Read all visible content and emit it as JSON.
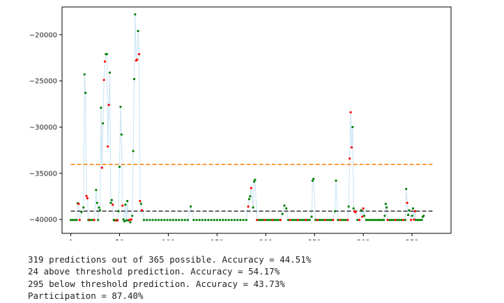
{
  "chart_data": {
    "type": "scatter",
    "title": "",
    "xlabel": "",
    "ylabel": "",
    "xlim": [
      -9,
      390
    ],
    "ylim": [
      -41500,
      -17000
    ],
    "xticks": [
      0,
      50,
      100,
      150,
      200,
      250,
      300,
      350
    ],
    "yticks": [
      -40000,
      -35000,
      -30000,
      -25000,
      -20000
    ],
    "ytick_labels": [
      "−40000",
      "−35000",
      "−30000",
      "−25000",
      "−20000"
    ],
    "reference_lines": [
      {
        "y": -34050,
        "x_range": [
          0,
          371
        ],
        "color": "#ff7f0e",
        "style": "dashed"
      },
      {
        "y": -39100,
        "x_range": [
          0,
          371
        ],
        "color": "#333333",
        "style": "dashed"
      }
    ],
    "line_color": "#cfe6f5",
    "point_colors": {
      "correct": "#008000",
      "incorrect": "#ff0000"
    },
    "points": [
      [
        0,
        -40050,
        "g"
      ],
      [
        2,
        -40050,
        "g"
      ],
      [
        4,
        -40050,
        "g"
      ],
      [
        6,
        -40050,
        "g"
      ],
      [
        7,
        -38250,
        "g"
      ],
      [
        8,
        -38300,
        "r"
      ],
      [
        9,
        -40050,
        "r"
      ],
      [
        11,
        -39200,
        "g"
      ],
      [
        13,
        -38700,
        "g"
      ],
      [
        14,
        -24300,
        "g"
      ],
      [
        15,
        -26300,
        "g"
      ],
      [
        16,
        -37450,
        "r"
      ],
      [
        17,
        -37700,
        "r"
      ],
      [
        18,
        -40050,
        "g"
      ],
      [
        19,
        -40050,
        "r"
      ],
      [
        20,
        -40050,
        "g"
      ],
      [
        22,
        -40050,
        "g"
      ],
      [
        24,
        -40050,
        "r"
      ],
      [
        26,
        -36800,
        "g"
      ],
      [
        27,
        -38200,
        "g"
      ],
      [
        28,
        -40050,
        "g"
      ],
      [
        29,
        -38700,
        "g"
      ],
      [
        30,
        -39000,
        "g"
      ],
      [
        31,
        -27900,
        "g"
      ],
      [
        32,
        -34400,
        "r"
      ],
      [
        33,
        -29600,
        "g"
      ],
      [
        34,
        -24900,
        "r"
      ],
      [
        35,
        -22900,
        "r"
      ],
      [
        36,
        -22100,
        "g"
      ],
      [
        37,
        -22100,
        "g"
      ],
      [
        38,
        -32100,
        "r"
      ],
      [
        39,
        -27600,
        "r"
      ],
      [
        40,
        -24100,
        "g"
      ],
      [
        41,
        -38200,
        "g"
      ],
      [
        42,
        -37900,
        "g"
      ],
      [
        43,
        -38400,
        "r"
      ],
      [
        44,
        -40050,
        "g"
      ],
      [
        45,
        -40100,
        "g"
      ],
      [
        46,
        -40100,
        "r"
      ],
      [
        47,
        -40050,
        "g"
      ],
      [
        48,
        -40100,
        "r"
      ],
      [
        49,
        -39100,
        "g"
      ],
      [
        50,
        -34300,
        "g"
      ],
      [
        51,
        -27800,
        "g"
      ],
      [
        52,
        -30800,
        "g"
      ],
      [
        53,
        -38500,
        "r"
      ],
      [
        54,
        -40000,
        "g"
      ],
      [
        55,
        -40200,
        "g"
      ],
      [
        56,
        -38400,
        "g"
      ],
      [
        57,
        -40100,
        "g"
      ],
      [
        58,
        -38000,
        "g"
      ],
      [
        59,
        -40100,
        "g"
      ],
      [
        60,
        -40050,
        "r"
      ],
      [
        61,
        -40300,
        "g"
      ],
      [
        62,
        -40000,
        "r"
      ],
      [
        63,
        -39600,
        "g"
      ],
      [
        64,
        -32600,
        "g"
      ],
      [
        65,
        -24800,
        "g"
      ],
      [
        66,
        -17800,
        "g"
      ],
      [
        67,
        -22800,
        "r"
      ],
      [
        68,
        -22700,
        "r"
      ],
      [
        69,
        -19600,
        "g"
      ],
      [
        70,
        -22100,
        "r"
      ],
      [
        71,
        -38000,
        "r"
      ],
      [
        72,
        -38300,
        "g"
      ],
      [
        73,
        -39000,
        "r"
      ],
      [
        75,
        -40050,
        "g"
      ],
      [
        78,
        -40050,
        "g"
      ],
      [
        81,
        -40050,
        "g"
      ],
      [
        84,
        -40050,
        "g"
      ],
      [
        87,
        -40050,
        "g"
      ],
      [
        90,
        -40050,
        "g"
      ],
      [
        93,
        -40050,
        "g"
      ],
      [
        96,
        -40050,
        "g"
      ],
      [
        99,
        -40050,
        "g"
      ],
      [
        102,
        -40050,
        "g"
      ],
      [
        105,
        -40050,
        "g"
      ],
      [
        108,
        -40050,
        "g"
      ],
      [
        111,
        -40050,
        "g"
      ],
      [
        114,
        -40050,
        "g"
      ],
      [
        117,
        -40050,
        "g"
      ],
      [
        120,
        -40050,
        "g"
      ],
      [
        123,
        -38600,
        "g"
      ],
      [
        126,
        -40050,
        "g"
      ],
      [
        129,
        -40050,
        "g"
      ],
      [
        132,
        -40050,
        "g"
      ],
      [
        135,
        -40050,
        "g"
      ],
      [
        138,
        -40050,
        "g"
      ],
      [
        141,
        -40050,
        "g"
      ],
      [
        144,
        -40050,
        "g"
      ],
      [
        147,
        -40050,
        "g"
      ],
      [
        150,
        -40050,
        "g"
      ],
      [
        153,
        -40050,
        "g"
      ],
      [
        156,
        -40050,
        "g"
      ],
      [
        159,
        -40050,
        "g"
      ],
      [
        162,
        -40050,
        "g"
      ],
      [
        165,
        -40050,
        "g"
      ],
      [
        168,
        -40050,
        "g"
      ],
      [
        171,
        -40050,
        "g"
      ],
      [
        174,
        -40050,
        "g"
      ],
      [
        177,
        -40050,
        "g"
      ],
      [
        180,
        -40050,
        "g"
      ],
      [
        182,
        -38600,
        "r"
      ],
      [
        183,
        -37800,
        "g"
      ],
      [
        184,
        -37500,
        "g"
      ],
      [
        185,
        -36600,
        "r"
      ],
      [
        187,
        -38700,
        "g"
      ],
      [
        188,
        -35900,
        "g"
      ],
      [
        189,
        -35700,
        "g"
      ],
      [
        191,
        -40050,
        "r"
      ],
      [
        193,
        -40050,
        "g"
      ],
      [
        195,
        -40050,
        "g"
      ],
      [
        197,
        -40050,
        "g"
      ],
      [
        199,
        -40050,
        "r"
      ],
      [
        201,
        -40050,
        "g"
      ],
      [
        203,
        -40050,
        "g"
      ],
      [
        205,
        -40050,
        "g"
      ],
      [
        207,
        -40050,
        "r"
      ],
      [
        209,
        -40050,
        "g"
      ],
      [
        211,
        -40050,
        "g"
      ],
      [
        213,
        -40050,
        "g"
      ],
      [
        215,
        -40050,
        "r"
      ],
      [
        217,
        -39400,
        "g"
      ],
      [
        219,
        -38500,
        "g"
      ],
      [
        221,
        -38800,
        "g"
      ],
      [
        223,
        -40050,
        "g"
      ],
      [
        225,
        -40050,
        "r"
      ],
      [
        227,
        -40050,
        "g"
      ],
      [
        229,
        -40050,
        "g"
      ],
      [
        231,
        -40050,
        "g"
      ],
      [
        233,
        -40050,
        "r"
      ],
      [
        235,
        -40050,
        "g"
      ],
      [
        237,
        -40050,
        "g"
      ],
      [
        239,
        -40050,
        "g"
      ],
      [
        241,
        -40050,
        "r"
      ],
      [
        243,
        -40050,
        "g"
      ],
      [
        245,
        -40050,
        "g"
      ],
      [
        247,
        -39700,
        "g"
      ],
      [
        248,
        -35800,
        "g"
      ],
      [
        249,
        -35600,
        "g"
      ],
      [
        251,
        -40050,
        "g"
      ],
      [
        253,
        -40050,
        "r"
      ],
      [
        255,
        -40050,
        "g"
      ],
      [
        257,
        -40050,
        "g"
      ],
      [
        259,
        -40050,
        "g"
      ],
      [
        261,
        -40050,
        "r"
      ],
      [
        263,
        -40050,
        "g"
      ],
      [
        265,
        -40050,
        "g"
      ],
      [
        267,
        -40050,
        "g"
      ],
      [
        269,
        -40050,
        "r"
      ],
      [
        271,
        -39100,
        "g"
      ],
      [
        272,
        -35800,
        "g"
      ],
      [
        274,
        -40050,
        "g"
      ],
      [
        276,
        -40050,
        "r"
      ],
      [
        278,
        -40050,
        "g"
      ],
      [
        280,
        -40050,
        "g"
      ],
      [
        282,
        -40050,
        "g"
      ],
      [
        284,
        -40050,
        "r"
      ],
      [
        285,
        -38600,
        "g"
      ],
      [
        286,
        -33400,
        "r"
      ],
      [
        287,
        -28400,
        "r"
      ],
      [
        288,
        -32200,
        "r"
      ],
      [
        289,
        -30000,
        "g"
      ],
      [
        290,
        -38800,
        "g"
      ],
      [
        291,
        -39100,
        "r"
      ],
      [
        292,
        -39200,
        "r"
      ],
      [
        294,
        -40050,
        "g"
      ],
      [
        296,
        -40050,
        "r"
      ],
      [
        298,
        -39000,
        "g"
      ],
      [
        299,
        -39700,
        "r"
      ],
      [
        300,
        -38800,
        "r"
      ],
      [
        301,
        -39600,
        "g"
      ],
      [
        303,
        -40050,
        "g"
      ],
      [
        305,
        -40050,
        "g"
      ],
      [
        307,
        -40050,
        "g"
      ],
      [
        309,
        -40050,
        "g"
      ],
      [
        311,
        -40050,
        "g"
      ],
      [
        313,
        -40050,
        "g"
      ],
      [
        315,
        -40050,
        "g"
      ],
      [
        317,
        -40050,
        "g"
      ],
      [
        319,
        -40050,
        "g"
      ],
      [
        321,
        -40050,
        "g"
      ],
      [
        322,
        -39600,
        "g"
      ],
      [
        323,
        -38300,
        "g"
      ],
      [
        324,
        -38700,
        "g"
      ],
      [
        325,
        -40050,
        "r"
      ],
      [
        327,
        -40050,
        "g"
      ],
      [
        329,
        -40050,
        "g"
      ],
      [
        331,
        -40050,
        "g"
      ],
      [
        333,
        -40050,
        "r"
      ],
      [
        335,
        -40050,
        "g"
      ],
      [
        337,
        -40050,
        "g"
      ],
      [
        339,
        -40050,
        "g"
      ],
      [
        341,
        -40050,
        "r"
      ],
      [
        343,
        -40050,
        "g"
      ],
      [
        344,
        -36700,
        "g"
      ],
      [
        345,
        -38200,
        "r"
      ],
      [
        346,
        -39500,
        "g"
      ],
      [
        347,
        -39000,
        "g"
      ],
      [
        349,
        -40050,
        "r"
      ],
      [
        350,
        -39600,
        "g"
      ],
      [
        351,
        -38800,
        "g"
      ],
      [
        352,
        -40000,
        "r"
      ],
      [
        353,
        -39100,
        "r"
      ],
      [
        354,
        -40050,
        "g"
      ],
      [
        356,
        -40050,
        "g"
      ],
      [
        358,
        -40050,
        "g"
      ],
      [
        360,
        -40050,
        "g"
      ],
      [
        361,
        -39700,
        "g"
      ],
      [
        362,
        -39600,
        "g"
      ]
    ]
  },
  "output": {
    "line1": "319 predictions out of 365 possible. Accuracy = 44.51%",
    "line2": "24 above threshold prediction. Accuracy = 54.17%",
    "line3": "295 below threshold prediction. Accuracy = 43.73%",
    "line4": "Participation = 87.40%"
  }
}
